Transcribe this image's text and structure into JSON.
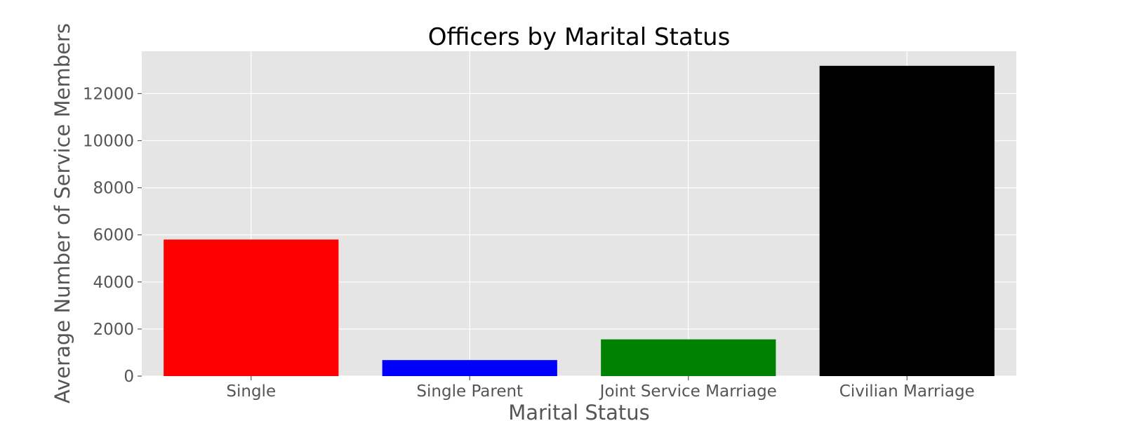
{
  "chart_data": {
    "type": "bar",
    "title": "Officers by Marital Status",
    "xlabel": "Marital Status",
    "ylabel": "Average Number of Service Members",
    "categories": [
      "Single",
      "Single Parent",
      "Joint Service Marriage",
      "Civilian Marriage"
    ],
    "values": [
      5800,
      680,
      1560,
      13180
    ],
    "colors": [
      "#ff0000",
      "#0000ff",
      "#008000",
      "#000000"
    ],
    "ylim": [
      0,
      13800
    ],
    "yticks": [
      0,
      2000,
      4000,
      6000,
      8000,
      10000,
      12000
    ],
    "grid": true,
    "background": "#e5e5e5",
    "style": "ggplot"
  }
}
